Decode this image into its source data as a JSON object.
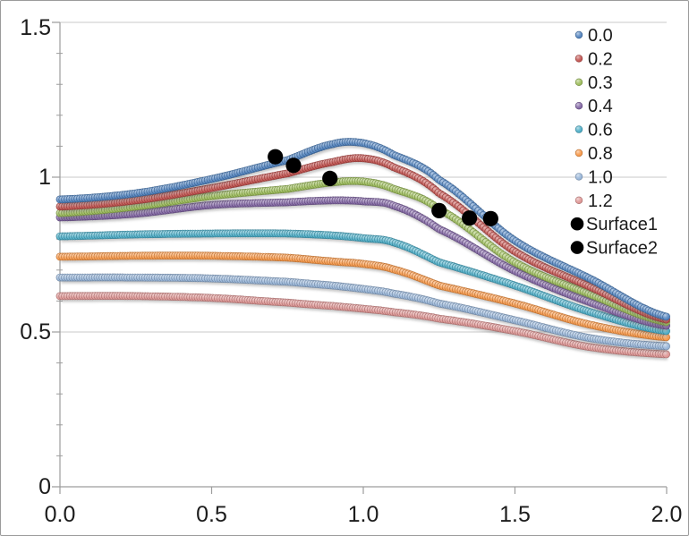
{
  "chart": {
    "background_color": "#ffffff",
    "border_color": "#9b9b9b",
    "gridline_color": "#c9c9c9",
    "axis_color": "#9d9d9d",
    "text_color": "#1c1c1c"
  },
  "chart_data": {
    "type": "scatter",
    "title": "",
    "xlabel": "",
    "ylabel": "",
    "xlim": [
      0.0,
      2.0
    ],
    "ylim": [
      0.0,
      1.5
    ],
    "grid": "horizontal",
    "legend_position": "top-right",
    "xticks": {
      "values": [
        0,
        0.5,
        1.0,
        1.5,
        2.0
      ],
      "labels": [
        "0.0",
        "0.5",
        "1.0",
        "1.5",
        "2.0"
      ]
    },
    "yticks": {
      "values": [
        0,
        0.5,
        1.0,
        1.5
      ],
      "labels": [
        "0",
        "0.5",
        "1",
        "1.5"
      ]
    },
    "y_minor_tick_step": 0.1,
    "x": [
      0,
      0.25,
      0.5,
      0.75,
      0.9,
      1.0,
      1.1,
      1.25,
      1.5,
      1.75,
      2.0
    ],
    "series": [
      {
        "name": "0.0",
        "color": "#4F81BD",
        "values": [
          0.928,
          0.948,
          0.994,
          1.055,
          1.107,
          1.11,
          1.072,
          0.991,
          0.795,
          0.671,
          0.549
        ]
      },
      {
        "name": "0.2",
        "color": "#C0504D",
        "values": [
          0.905,
          0.925,
          0.965,
          1.012,
          1.049,
          1.061,
          1.032,
          0.948,
          0.76,
          0.645,
          0.54
        ]
      },
      {
        "name": "0.3",
        "color": "#9BBB59",
        "values": [
          0.884,
          0.905,
          0.939,
          0.962,
          0.983,
          0.986,
          0.962,
          0.896,
          0.725,
          0.621,
          0.532
        ]
      },
      {
        "name": "0.4",
        "color": "#8064A2",
        "values": [
          0.87,
          0.882,
          0.91,
          0.919,
          0.925,
          0.922,
          0.908,
          0.832,
          0.697,
          0.595,
          0.52
        ]
      },
      {
        "name": "0.6",
        "color": "#4BACC6",
        "values": [
          0.809,
          0.815,
          0.818,
          0.818,
          0.812,
          0.803,
          0.789,
          0.725,
          0.65,
          0.564,
          0.503
        ]
      },
      {
        "name": "0.8",
        "color": "#F79646",
        "values": [
          0.743,
          0.746,
          0.746,
          0.74,
          0.728,
          0.72,
          0.702,
          0.65,
          0.592,
          0.523,
          0.483
        ]
      },
      {
        "name": "1.0",
        "color": "#95B3D7",
        "values": [
          0.676,
          0.676,
          0.673,
          0.662,
          0.65,
          0.639,
          0.624,
          0.592,
          0.538,
          0.48,
          0.454
        ]
      },
      {
        "name": "1.2",
        "color": "#DD9492",
        "values": [
          0.616,
          0.616,
          0.61,
          0.595,
          0.584,
          0.575,
          0.564,
          0.543,
          0.503,
          0.451,
          0.428
        ]
      }
    ],
    "point_series": [
      {
        "name": "Surface1",
        "color": "#000000",
        "points": [
          [
            0.71,
            1.066
          ],
          [
            0.77,
            1.038
          ],
          [
            0.89,
            0.996
          ]
        ]
      },
      {
        "name": "Surface2",
        "color": "#000000",
        "points": [
          [
            1.25,
            0.892
          ],
          [
            1.35,
            0.868
          ],
          [
            1.42,
            0.866
          ]
        ]
      }
    ]
  }
}
